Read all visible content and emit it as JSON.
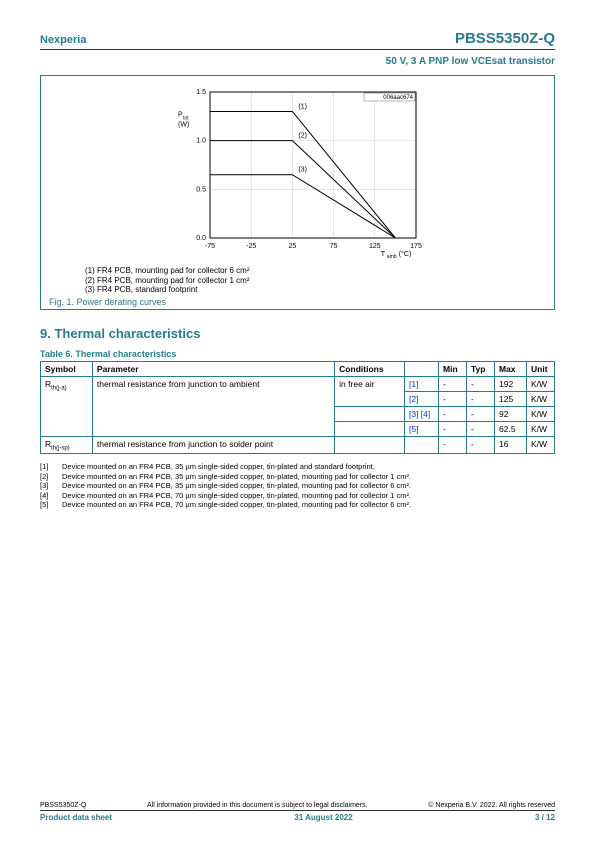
{
  "header": {
    "company": "Nexperia",
    "part": "PBSS5350Z-Q",
    "subtitle": "50 V, 3 A PNP low VCEsat transistor"
  },
  "chart": {
    "type": "line",
    "code": "006aac674",
    "ylabel_html": "P<sub>tot</sub><br>(W)",
    "xlabel_html": "T<sub>amb</sub> (°C)",
    "xlim": [
      -75,
      175
    ],
    "xticks": [
      -75,
      -25,
      25,
      75,
      125,
      175
    ],
    "ylim": [
      0,
      1.5
    ],
    "yticks": [
      0.0,
      0.5,
      1.0,
      1.5
    ],
    "grid_color": "#cccccc",
    "axis_color": "#000000",
    "bg": "#ffffff",
    "series": [
      {
        "label": "(1)",
        "points": [
          [
            -75,
            1.3
          ],
          [
            25,
            1.3
          ],
          [
            150,
            0
          ]
        ],
        "color": "#000000"
      },
      {
        "label": "(2)",
        "points": [
          [
            -75,
            1.0
          ],
          [
            25,
            1.0
          ],
          [
            150,
            0
          ]
        ],
        "color": "#000000"
      },
      {
        "label": "(3)",
        "points": [
          [
            -75,
            0.65
          ],
          [
            25,
            0.65
          ],
          [
            150,
            0
          ]
        ],
        "color": "#000000"
      }
    ],
    "legend_lines": [
      "(1) FR4 PCB, mounting pad for collector 6 cm²",
      "(2) FR4 PCB, mounting pad for collector 1 cm²",
      "(3) FR4 PCB, standard footprint"
    ],
    "caption": "Fig. 1.   Power derating curves"
  },
  "section9": {
    "title": "9.  Thermal characteristics",
    "table_caption": "Table 6. Thermal characteristics",
    "columns": [
      "Symbol",
      "Parameter",
      "Conditions",
      "",
      "Min",
      "Typ",
      "Max",
      "Unit"
    ],
    "rows": [
      {
        "symbol": "R<sub>th(j-a)</sub>",
        "symbol_rowspan": 4,
        "param": "thermal resistance from junction to ambient",
        "param_rowspan": 4,
        "cond": "in free air",
        "cond_rowspan": 2,
        "ref": "[1]",
        "min": "-",
        "typ": "-",
        "max": "192",
        "unit": "K/W"
      },
      {
        "ref": "[2]",
        "min": "-",
        "typ": "-",
        "max": "125",
        "unit": "K/W"
      },
      {
        "cond": "",
        "ref": "[3] [4]",
        "min": "-",
        "typ": "-",
        "max": "92",
        "unit": "K/W"
      },
      {
        "cond": "",
        "ref": "[5]",
        "min": "-",
        "typ": "-",
        "max": "62.5",
        "unit": "K/W"
      },
      {
        "symbol": "R<sub>th(j-sp)</sub>",
        "param": "thermal resistance from junction to solder point",
        "cond": "",
        "ref": "",
        "min": "-",
        "typ": "-",
        "max": "16",
        "unit": "K/W"
      }
    ],
    "footnotes": [
      "Device mounted on an FR4 PCB, 35 µm single-sided copper, tin-plated and standard footprint.",
      "Device mounted on an FR4 PCB, 35 µm single-sided copper, tin-plated, mounting pad for collector 1 cm².",
      "Device mounted on an FR4 PCB, 35 µm single-sided copper, tin-plated, mounting pad for collector 6 cm².",
      "Device mounted on an FR4 PCB, 70 µm single-sided copper, tin-plated, mounting pad for collector 1 cm².",
      "Device mounted on an FR4 PCB, 70 µm single-sided copper, tin-plated, mounting pad for collector 6 cm²."
    ]
  },
  "footer": {
    "left_small": "PBSS5350Z-Q",
    "mid_small": "All information provided in this document is subject to legal disclaimers.",
    "right_small": "© Nexperia B.V. 2022. All rights reserved",
    "left": "Product data sheet",
    "date": "31 August 2022",
    "page": "3 / 12"
  }
}
